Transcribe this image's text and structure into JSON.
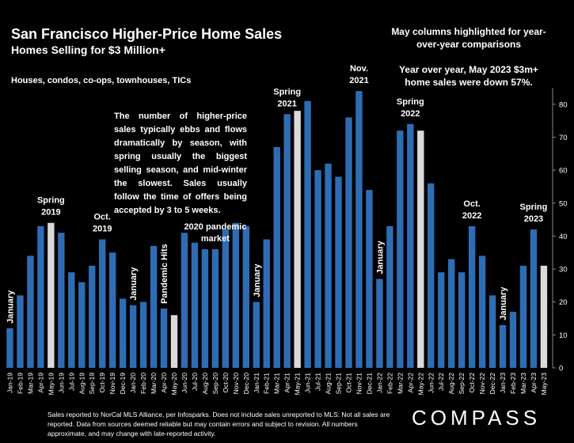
{
  "chart_data": {
    "type": "bar",
    "title": "San Francisco Higher-Price Home Sales",
    "subtitle": "Homes Selling for $3 Million+",
    "category_note": "Houses, condos, co-ops, townhouses, TICs",
    "highlight_note": "May columns highlighted for year-over-year comparisons",
    "yoy_note": "Year over year, May 2023 $3m+ home sales were down 57%.",
    "body_note": "The number of higher-price sales typically ebbs and flows dramatically by season, with spring usually the biggest selling season, and mid-winter the slowest. Sales usually follow the time of offers being accepted by 3 to 5 weeks.",
    "source_note": "Sales reported to NorCal MLS Alliance, per Infosparks. Does not include sales unreported to MLS: Not all sales are reported. Data from sources deemed reliable but may contain errors and subject to revision.  All numbers approximate, and may change with late-reported activity.",
    "brand": "COMPASS",
    "ylim": [
      0,
      85
    ],
    "yticks": [
      0,
      10,
      20,
      30,
      40,
      50,
      60,
      70,
      80
    ],
    "grid": false,
    "colors": {
      "bar": "#2E6DB4",
      "highlight": "#DADADA",
      "background": "#000000"
    },
    "categories": [
      "Jan-19",
      "Feb-19",
      "Mar-19",
      "Apr-19",
      "May-19",
      "Jun-19",
      "Jul-19",
      "Aug-19",
      "Sep-19",
      "Oct-19",
      "Nov-19",
      "Dec-19",
      "Jan-20",
      "Feb-20",
      "Mar-20",
      "Apr-20",
      "May-20",
      "Jun-20",
      "Jul-20",
      "Aug-20",
      "Sep-20",
      "Oct-20",
      "Nov-20",
      "Dec-20",
      "Jan-21",
      "Feb-21",
      "Mar-21",
      "Apr-21",
      "May-21",
      "Jun-21",
      "Jul-21",
      "Aug-21",
      "Sep-21",
      "Oct-21",
      "Nov-21",
      "Dec-21",
      "Jan-22",
      "Feb-22",
      "Mar-22",
      "Apr-22",
      "May-22",
      "Jun-22",
      "Jul-22",
      "Aug-22",
      "Sep-22",
      "Oct-22",
      "Nov-22",
      "Dec-22",
      "Jan-23",
      "Feb-23",
      "Mar-23",
      "Apr-23",
      "May-23"
    ],
    "values": [
      12,
      22,
      34,
      43,
      44,
      41,
      29,
      26,
      31,
      39,
      35,
      21,
      19,
      20,
      37,
      18,
      16,
      41,
      38,
      36,
      36,
      42,
      44,
      43,
      20,
      39,
      67,
      77,
      78,
      81,
      60,
      62,
      58,
      76,
      84,
      54,
      27,
      43,
      72,
      74,
      72,
      56,
      29,
      33,
      29,
      43,
      34,
      22,
      13,
      17,
      31,
      42,
      31
    ],
    "highlighted": [
      "May-19",
      "May-20",
      "May-21",
      "May-22",
      "May-23"
    ],
    "annotations": [
      {
        "text": "January",
        "category": "Jan-19",
        "rotated": true
      },
      {
        "text": "Spring 2019",
        "category": "May-19"
      },
      {
        "text": "Oct. 2019",
        "category": "Oct-19"
      },
      {
        "text": "January",
        "category": "Jan-20",
        "rotated": true
      },
      {
        "text": "Pandemic Hits",
        "category": "Apr-20",
        "rotated": true
      },
      {
        "text": "2020 pandemic market",
        "category": "Sep-20"
      },
      {
        "text": "January",
        "category": "Jan-21",
        "rotated": true
      },
      {
        "text": "Spring 2021",
        "category": "Apr-21"
      },
      {
        "text": "Nov. 2021",
        "category": "Nov-21"
      },
      {
        "text": "January",
        "category": "Jan-22",
        "rotated": true
      },
      {
        "text": "Spring 2022",
        "category": "Apr-22"
      },
      {
        "text": "Oct. 2022",
        "category": "Oct-22"
      },
      {
        "text": "January",
        "category": "Jan-23",
        "rotated": true
      },
      {
        "text": "Spring 2023",
        "category": "Apr-23"
      }
    ]
  }
}
